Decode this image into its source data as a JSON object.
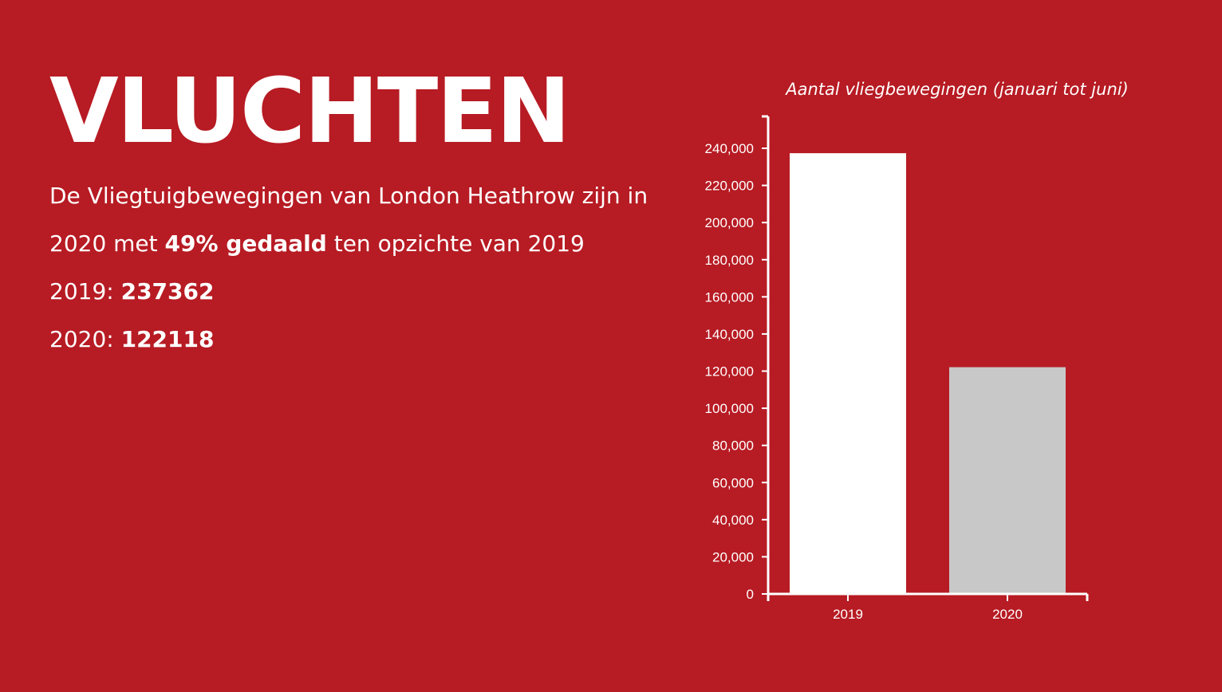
{
  "heading": "VLUCHTEN",
  "intro": {
    "part1": "De Vliegtuigbewegingen van London Heathrow zijn in 2020 met ",
    "bold": "49% gedaald",
    "part2": " ten opzichte van 2019"
  },
  "stats": [
    {
      "label": "2019: ",
      "value": "237362"
    },
    {
      "label": "2020: ",
      "value": "122118"
    }
  ],
  "colors": {
    "background": "#b71b23",
    "text": "#ffffff",
    "bar_2019": "#ffffff",
    "bar_2020": "#c8c8c8"
  },
  "chart_data": {
    "type": "bar",
    "title": "Aantal vliegbewegingen (januari tot juni)",
    "categories": [
      "2019",
      "2020"
    ],
    "values": [
      237362,
      122118
    ],
    "bar_colors": [
      "#ffffff",
      "#c8c8c8"
    ],
    "ylim": [
      0,
      250000
    ],
    "yticks": [
      0,
      20000,
      40000,
      60000,
      80000,
      100000,
      120000,
      140000,
      160000,
      180000,
      200000,
      220000,
      240000
    ],
    "ytick_labels": [
      "0",
      "20,000",
      "40,000",
      "60,000",
      "80,000",
      "100,000",
      "120,000",
      "140,000",
      "160,000",
      "180,000",
      "200,000",
      "220,000",
      "240,000"
    ],
    "xlabel": "",
    "ylabel": "",
    "grid": false,
    "legend": "none"
  }
}
